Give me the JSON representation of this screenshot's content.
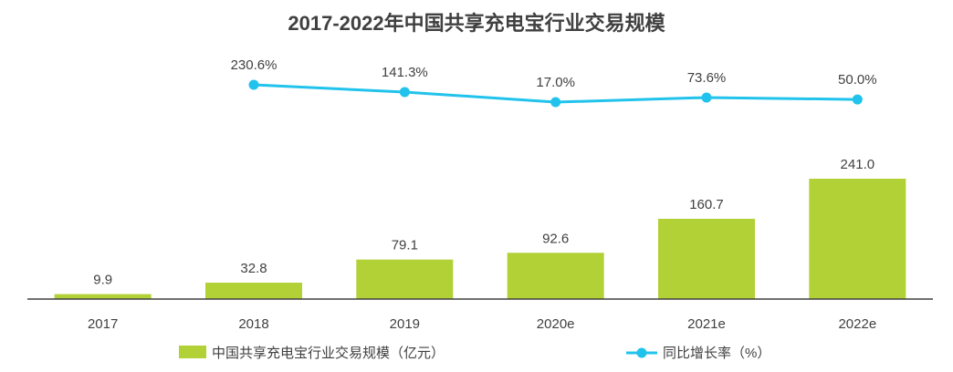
{
  "chart_data": {
    "type": "bar",
    "title": "2017-2022年中国共享充电宝行业交易规模",
    "categories": [
      "2017",
      "2018",
      "2019",
      "2020e",
      "2021e",
      "2022e"
    ],
    "series": [
      {
        "name": "中国共享充电宝行业交易规模（亿元）",
        "type": "bar",
        "values": [
          9.9,
          32.8,
          79.1,
          92.6,
          160.7,
          241.0
        ],
        "labels": [
          "9.9",
          "32.8",
          "79.1",
          "92.6",
          "160.7",
          "241.0"
        ]
      },
      {
        "name": "同比增长率（%）",
        "type": "line",
        "values": [
          null,
          230.6,
          141.3,
          17.0,
          73.6,
          50.0
        ],
        "labels": [
          "",
          "230.6%",
          "141.3%",
          "17.0%",
          "73.6%",
          "50.0%"
        ]
      }
    ],
    "legend_position": "bottom",
    "grid": false
  },
  "colors": {
    "bar": "#b1d136",
    "line": "#21c3ec",
    "axis": "#404040",
    "text": "#404040"
  }
}
